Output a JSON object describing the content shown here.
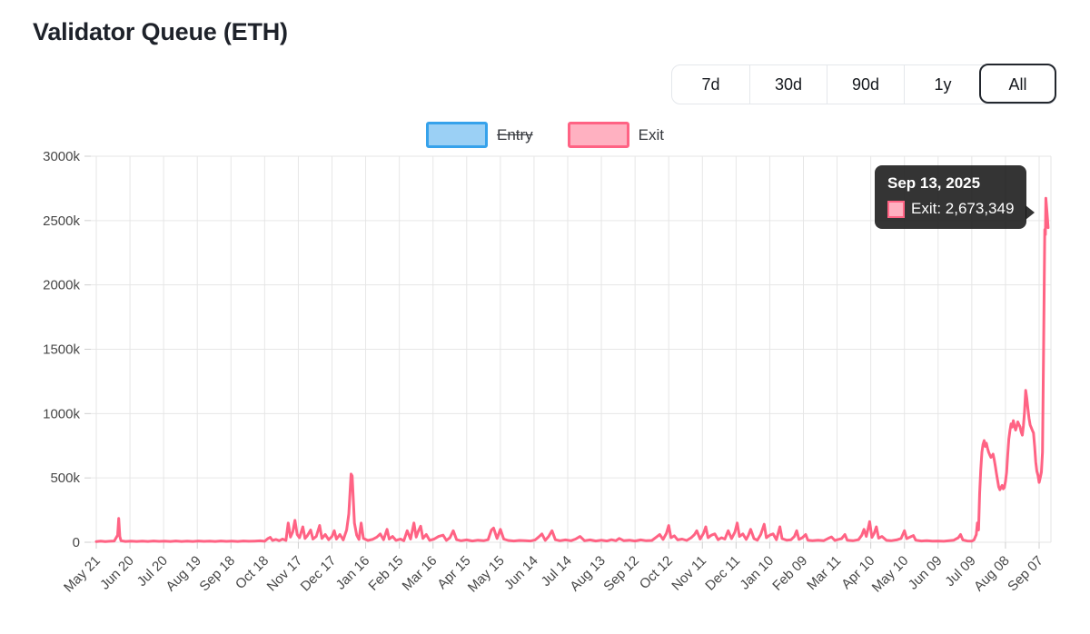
{
  "title": "Validator Queue (ETH)",
  "time_range": {
    "buttons": [
      {
        "label": "7d",
        "active": false
      },
      {
        "label": "30d",
        "active": false
      },
      {
        "label": "90d",
        "active": false
      },
      {
        "label": "1y",
        "active": false
      },
      {
        "label": "All",
        "active": true
      }
    ]
  },
  "legend": {
    "entry": {
      "label": "Entry",
      "hidden": true,
      "border_color": "#36A2EB",
      "fill_color": "#9BD0F5"
    },
    "exit": {
      "label": "Exit",
      "hidden": false,
      "border_color": "#FF6384",
      "fill_color": "#FFB1C1"
    }
  },
  "tooltip": {
    "title": "Sep 13, 2025",
    "line": "Exit: 2,673,349",
    "marker_border": "#FF6384",
    "marker_fill": "#FFB1C1",
    "bg": "rgba(22,22,22,0.87)"
  },
  "chart_data": {
    "type": "line",
    "title": "Validator Queue (ETH)",
    "legend_position": "top",
    "grid": true,
    "y_tick_labels": [
      "0",
      "500k",
      "1000k",
      "1500k",
      "2000k",
      "2500k",
      "3000k"
    ],
    "ylim_thousands": [
      0,
      3000
    ],
    "x_tick_labels": [
      "May 21",
      "Jun 20",
      "Jul 20",
      "Aug 19",
      "Sep 18",
      "Oct 18",
      "Nov 17",
      "Dec 17",
      "Jan 16",
      "Feb 15",
      "Mar 16",
      "Apr 15",
      "May 15",
      "Jun 14",
      "Jul 14",
      "Aug 13",
      "Sep 12",
      "Oct 12",
      "Nov 11",
      "Dec 11",
      "Jan 10",
      "Feb 09",
      "Mar 11",
      "Apr 10",
      "May 10",
      "Jun 09",
      "Jul 09",
      "Aug 08",
      "Sep 07"
    ],
    "x_tick_interval_days": 30,
    "points_unit": "value in thousands; x is days after first tick (May 21)",
    "highlighted_point": {
      "series": "Exit",
      "date": "Sep 13, 2025",
      "value": 2673349
    },
    "series": [
      {
        "name": "Entry",
        "color": "#36A2EB",
        "fill": "#9BD0F5",
        "hidden": true,
        "points": []
      },
      {
        "name": "Exit",
        "color": "#FF6384",
        "fill": "#FFB1C1",
        "hidden": false,
        "points": [
          [
            0,
            5
          ],
          [
            4,
            9
          ],
          [
            8,
            5
          ],
          [
            12,
            8
          ],
          [
            16,
            10
          ],
          [
            19,
            55
          ],
          [
            20,
            185
          ],
          [
            21,
            45
          ],
          [
            22,
            12
          ],
          [
            26,
            6
          ],
          [
            31,
            9
          ],
          [
            36,
            6
          ],
          [
            41,
            9
          ],
          [
            46,
            6
          ],
          [
            51,
            10
          ],
          [
            56,
            7
          ],
          [
            61,
            9
          ],
          [
            66,
            6
          ],
          [
            71,
            10
          ],
          [
            76,
            6
          ],
          [
            81,
            9
          ],
          [
            86,
            6
          ],
          [
            91,
            10
          ],
          [
            96,
            7
          ],
          [
            101,
            9
          ],
          [
            106,
            6
          ],
          [
            111,
            10
          ],
          [
            116,
            7
          ],
          [
            121,
            9
          ],
          [
            126,
            6
          ],
          [
            131,
            10
          ],
          [
            136,
            8
          ],
          [
            141,
            9
          ],
          [
            146,
            11
          ],
          [
            150,
            8
          ],
          [
            153,
            30
          ],
          [
            155,
            38
          ],
          [
            157,
            14
          ],
          [
            160,
            22
          ],
          [
            163,
            12
          ],
          [
            166,
            25
          ],
          [
            169,
            14
          ],
          [
            171,
            150
          ],
          [
            173,
            40
          ],
          [
            175,
            80
          ],
          [
            177,
            170
          ],
          [
            179,
            60
          ],
          [
            181,
            35
          ],
          [
            184,
            120
          ],
          [
            186,
            30
          ],
          [
            188,
            50
          ],
          [
            191,
            95
          ],
          [
            193,
            25
          ],
          [
            196,
            45
          ],
          [
            199,
            130
          ],
          [
            201,
            30
          ],
          [
            204,
            60
          ],
          [
            207,
            20
          ],
          [
            210,
            45
          ],
          [
            212,
            90
          ],
          [
            214,
            25
          ],
          [
            217,
            60
          ],
          [
            220,
            18
          ],
          [
            223,
            95
          ],
          [
            225,
            220
          ],
          [
            227,
            530
          ],
          [
            228,
            515
          ],
          [
            230,
            150
          ],
          [
            232,
            55
          ],
          [
            234,
            22
          ],
          [
            236,
            150
          ],
          [
            238,
            30
          ],
          [
            242,
            14
          ],
          [
            246,
            22
          ],
          [
            250,
            40
          ],
          [
            253,
            65
          ],
          [
            256,
            20
          ],
          [
            259,
            100
          ],
          [
            261,
            25
          ],
          [
            264,
            45
          ],
          [
            267,
            15
          ],
          [
            271,
            25
          ],
          [
            274,
            12
          ],
          [
            277,
            90
          ],
          [
            280,
            25
          ],
          [
            283,
            150
          ],
          [
            285,
            40
          ],
          [
            287,
            90
          ],
          [
            289,
            125
          ],
          [
            291,
            30
          ],
          [
            294,
            60
          ],
          [
            297,
            15
          ],
          [
            301,
            25
          ],
          [
            305,
            45
          ],
          [
            309,
            55
          ],
          [
            312,
            15
          ],
          [
            315,
            35
          ],
          [
            318,
            90
          ],
          [
            321,
            20
          ],
          [
            325,
            12
          ],
          [
            330,
            18
          ],
          [
            335,
            10
          ],
          [
            340,
            16
          ],
          [
            345,
            12
          ],
          [
            349,
            20
          ],
          [
            352,
            95
          ],
          [
            354,
            110
          ],
          [
            357,
            30
          ],
          [
            360,
            100
          ],
          [
            363,
            25
          ],
          [
            367,
            14
          ],
          [
            372,
            10
          ],
          [
            377,
            14
          ],
          [
            382,
            12
          ],
          [
            387,
            10
          ],
          [
            391,
            18
          ],
          [
            394,
            40
          ],
          [
            397,
            65
          ],
          [
            400,
            15
          ],
          [
            403,
            45
          ],
          [
            406,
            90
          ],
          [
            409,
            20
          ],
          [
            413,
            12
          ],
          [
            418,
            18
          ],
          [
            423,
            12
          ],
          [
            427,
            25
          ],
          [
            431,
            45
          ],
          [
            435,
            12
          ],
          [
            440,
            18
          ],
          [
            445,
            10
          ],
          [
            450,
            16
          ],
          [
            455,
            10
          ],
          [
            459,
            20
          ],
          [
            463,
            12
          ],
          [
            466,
            30
          ],
          [
            470,
            12
          ],
          [
            475,
            16
          ],
          [
            480,
            10
          ],
          [
            485,
            18
          ],
          [
            490,
            12
          ],
          [
            495,
            14
          ],
          [
            499,
            40
          ],
          [
            502,
            60
          ],
          [
            505,
            22
          ],
          [
            508,
            70
          ],
          [
            510,
            130
          ],
          [
            512,
            35
          ],
          [
            515,
            50
          ],
          [
            518,
            18
          ],
          [
            522,
            25
          ],
          [
            526,
            14
          ],
          [
            530,
            35
          ],
          [
            533,
            60
          ],
          [
            535,
            90
          ],
          [
            538,
            25
          ],
          [
            541,
            70
          ],
          [
            543,
            120
          ],
          [
            545,
            35
          ],
          [
            548,
            55
          ],
          [
            551,
            65
          ],
          [
            554,
            20
          ],
          [
            557,
            35
          ],
          [
            560,
            25
          ],
          [
            563,
            90
          ],
          [
            566,
            28
          ],
          [
            569,
            80
          ],
          [
            571,
            150
          ],
          [
            573,
            45
          ],
          [
            576,
            65
          ],
          [
            579,
            22
          ],
          [
            581,
            55
          ],
          [
            583,
            100
          ],
          [
            586,
            28
          ],
          [
            589,
            16
          ],
          [
            592,
            60
          ],
          [
            595,
            140
          ],
          [
            597,
            35
          ],
          [
            600,
            55
          ],
          [
            603,
            65
          ],
          [
            606,
            20
          ],
          [
            609,
            120
          ],
          [
            611,
            28
          ],
          [
            615,
            16
          ],
          [
            619,
            20
          ],
          [
            622,
            45
          ],
          [
            624,
            90
          ],
          [
            626,
            22
          ],
          [
            629,
            35
          ],
          [
            632,
            60
          ],
          [
            634,
            16
          ],
          [
            638,
            12
          ],
          [
            643,
            16
          ],
          [
            648,
            12
          ],
          [
            652,
            30
          ],
          [
            655,
            42
          ],
          [
            658,
            14
          ],
          [
            661,
            22
          ],
          [
            664,
            28
          ],
          [
            667,
            60
          ],
          [
            669,
            16
          ],
          [
            674,
            12
          ],
          [
            679,
            20
          ],
          [
            682,
            55
          ],
          [
            684,
            100
          ],
          [
            686,
            45
          ],
          [
            688,
            120
          ],
          [
            689,
            160
          ],
          [
            691,
            38
          ],
          [
            693,
            70
          ],
          [
            695,
            120
          ],
          [
            697,
            32
          ],
          [
            700,
            45
          ],
          [
            704,
            15
          ],
          [
            708,
            12
          ],
          [
            713,
            18
          ],
          [
            717,
            30
          ],
          [
            720,
            90
          ],
          [
            722,
            28
          ],
          [
            725,
            40
          ],
          [
            728,
            52
          ],
          [
            730,
            16
          ],
          [
            735,
            10
          ],
          [
            740,
            12
          ],
          [
            745,
            9
          ],
          [
            750,
            10
          ],
          [
            755,
            8
          ],
          [
            760,
            12
          ],
          [
            764,
            16
          ],
          [
            768,
            35
          ],
          [
            770,
            60
          ],
          [
            772,
            18
          ],
          [
            776,
            10
          ],
          [
            780,
            9
          ],
          [
            782,
            18
          ],
          [
            784,
            60
          ],
          [
            785,
            150
          ],
          [
            786,
            95
          ],
          [
            787,
            380
          ],
          [
            788,
            560
          ],
          [
            789,
            700
          ],
          [
            790,
            760
          ],
          [
            791,
            790
          ],
          [
            792,
            745
          ],
          [
            793,
            770
          ],
          [
            794,
            730
          ],
          [
            795,
            700
          ],
          [
            796,
            680
          ],
          [
            797,
            660
          ],
          [
            798,
            672
          ],
          [
            799,
            685
          ],
          [
            800,
            640
          ],
          [
            801,
            590
          ],
          [
            802,
            535
          ],
          [
            803,
            480
          ],
          [
            804,
            430
          ],
          [
            805,
            408
          ],
          [
            806,
            425
          ],
          [
            807,
            442
          ],
          [
            808,
            415
          ],
          [
            809,
            425
          ],
          [
            810,
            470
          ],
          [
            811,
            545
          ],
          [
            812,
            680
          ],
          [
            813,
            800
          ],
          [
            814,
            870
          ],
          [
            815,
            920
          ],
          [
            816,
            895
          ],
          [
            817,
            945
          ],
          [
            818,
            905
          ],
          [
            819,
            872
          ],
          [
            820,
            900
          ],
          [
            821,
            935
          ],
          [
            822,
            915
          ],
          [
            823,
            898
          ],
          [
            824,
            858
          ],
          [
            825,
            832
          ],
          [
            826,
            905
          ],
          [
            827,
            1010
          ],
          [
            828,
            1180
          ],
          [
            829,
            1120
          ],
          [
            830,
            1040
          ],
          [
            831,
            962
          ],
          [
            832,
            912
          ],
          [
            833,
            890
          ],
          [
            834,
            868
          ],
          [
            835,
            850
          ],
          [
            836,
            742
          ],
          [
            837,
            622
          ],
          [
            838,
            552
          ],
          [
            839,
            518
          ],
          [
            840,
            465
          ],
          [
            841,
            500
          ],
          [
            842,
            545
          ],
          [
            843,
            700
          ],
          [
            844,
            1500
          ],
          [
            845,
            2430
          ],
          [
            845.6,
            2390
          ],
          [
            846,
            2673.349
          ],
          [
            847,
            2560
          ],
          [
            848,
            2445
          ]
        ]
      }
    ]
  }
}
